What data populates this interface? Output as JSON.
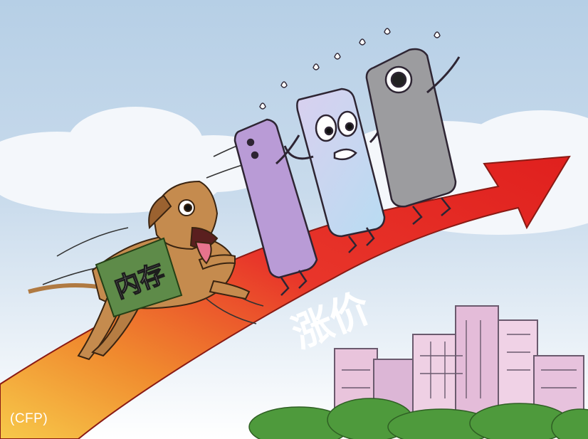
{
  "illustration": {
    "arrow_label": "涨价",
    "dog_label": "内存",
    "credit": "(CFP)"
  }
}
